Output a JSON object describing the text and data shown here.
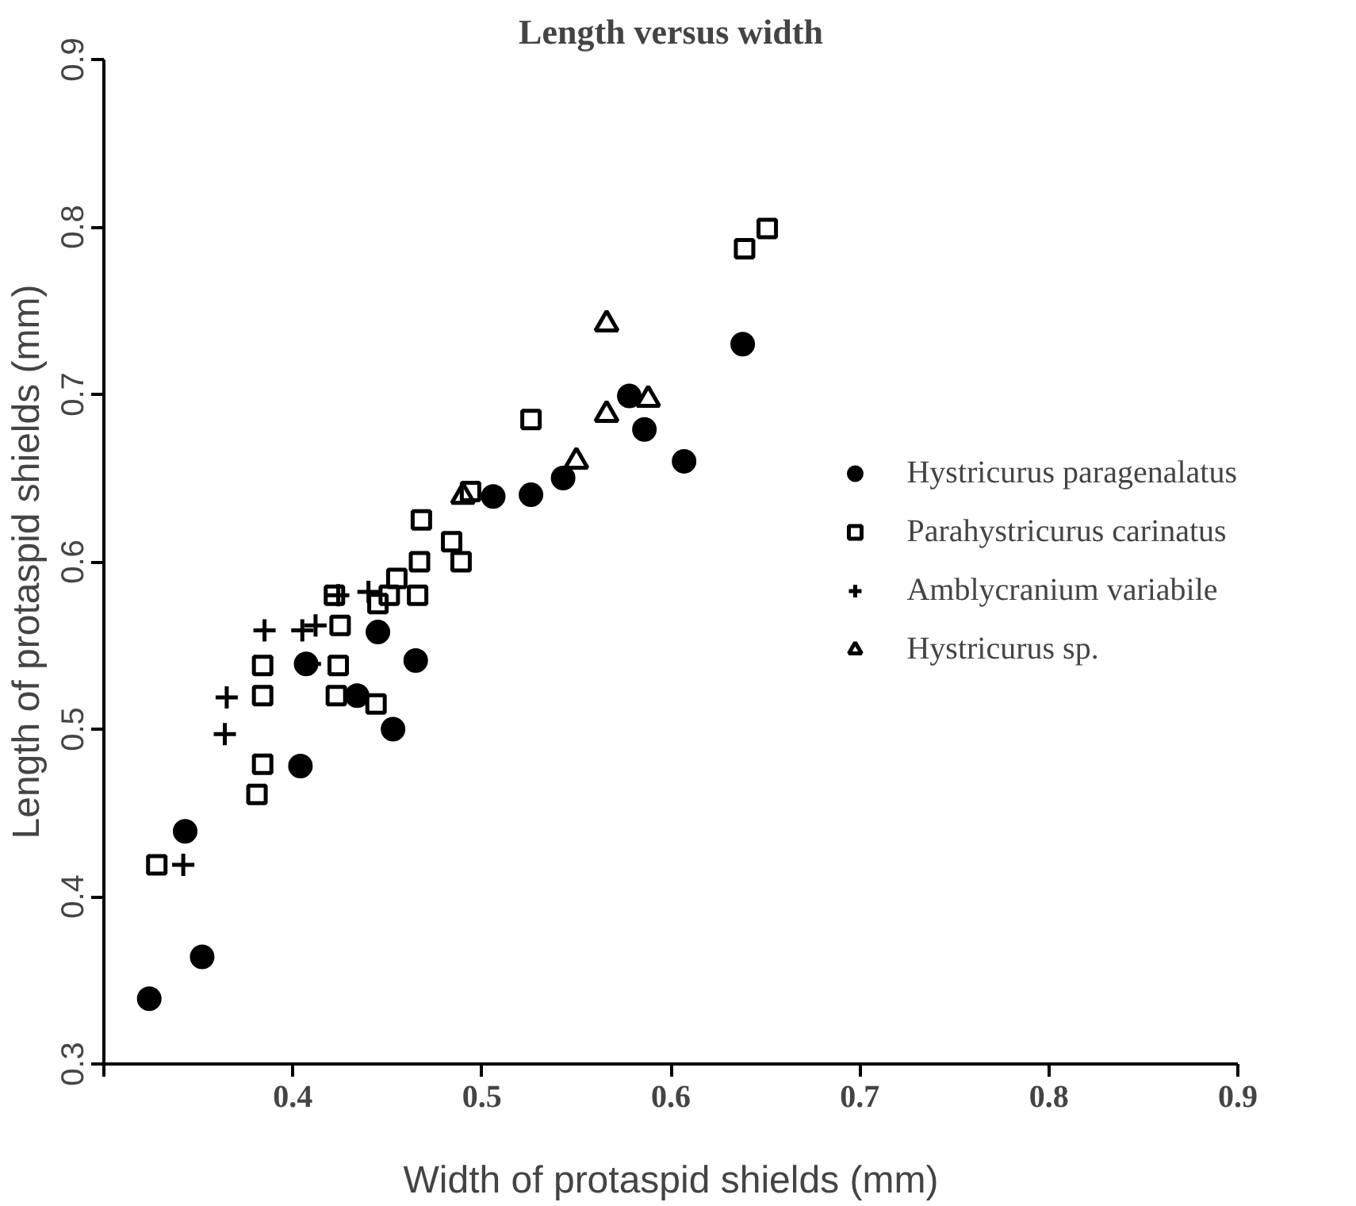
{
  "chart_data": {
    "type": "scatter",
    "title": "Length versus width",
    "xlabel": "Width of protaspid shields (mm)",
    "ylabel": "Length of protaspid shields (mm)",
    "xlim": [
      0.3,
      0.9
    ],
    "ylim": [
      0.3,
      0.9
    ],
    "xticks": [
      {
        "value": 0.3,
        "label": null
      },
      0.4,
      0.5,
      0.6,
      0.7,
      0.8,
      0.9
    ],
    "yticks": [
      0.3,
      0.4,
      0.5,
      0.6,
      0.7,
      0.8,
      0.9
    ],
    "grid": false,
    "legend": "right",
    "series": [
      {
        "name": "Hystricurus paragenalatus",
        "color": "#000000",
        "marker": "circle",
        "x": [
          0.324,
          0.352,
          0.343,
          0.404,
          0.453,
          0.434,
          0.465,
          0.445,
          0.407,
          0.506,
          0.526,
          0.543,
          0.578,
          0.586,
          0.607,
          0.638
        ],
        "values": [
          0.339,
          0.364,
          0.439,
          0.478,
          0.5,
          0.52,
          0.541,
          0.558,
          0.539,
          0.639,
          0.64,
          0.65,
          0.699,
          0.679,
          0.66,
          0.73
        ]
      },
      {
        "name": "Parahystricurus carinatus",
        "color": "#000000",
        "marker": "square",
        "x": [
          0.328,
          0.381,
          0.384,
          0.384,
          0.384,
          0.423,
          0.444,
          0.424,
          0.425,
          0.422,
          0.445,
          0.451,
          0.466,
          0.455,
          0.467,
          0.489,
          0.484,
          0.468,
          0.494,
          0.526,
          0.639,
          0.651
        ],
        "values": [
          0.419,
          0.461,
          0.479,
          0.52,
          0.538,
          0.52,
          0.515,
          0.538,
          0.562,
          0.58,
          0.575,
          0.58,
          0.58,
          0.59,
          0.6,
          0.6,
          0.612,
          0.625,
          0.642,
          0.685,
          0.787,
          0.799
        ]
      },
      {
        "name": "Amblycranium variabile",
        "color": "#000000",
        "marker": "cross",
        "x": [
          0.342,
          0.364,
          0.365,
          0.409,
          0.385,
          0.405,
          0.412,
          0.424,
          0.44
        ],
        "values": [
          0.419,
          0.497,
          0.519,
          0.539,
          0.559,
          0.559,
          0.562,
          0.58,
          0.582
        ]
      },
      {
        "name": "Hystricurus sp.",
        "color": "#000000",
        "marker": "triangle",
        "x": [
          0.49,
          0.55,
          0.566,
          0.588,
          0.566
        ],
        "values": [
          0.639,
          0.66,
          0.688,
          0.697,
          0.742
        ]
      }
    ]
  }
}
